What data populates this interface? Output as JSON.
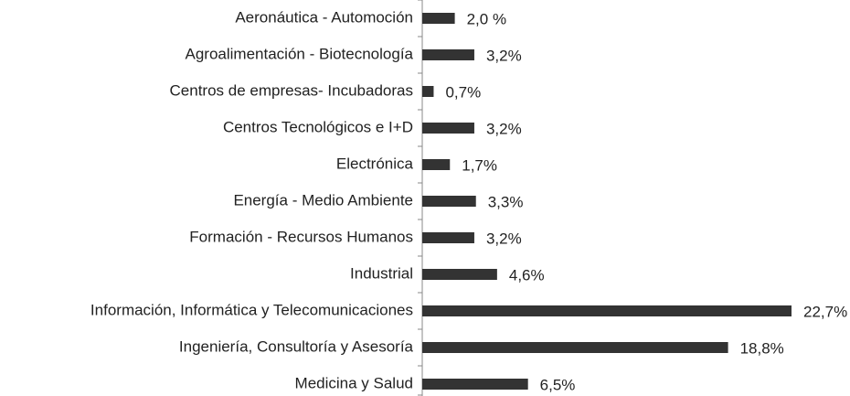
{
  "chart_data": {
    "type": "barh",
    "categories": [
      "Aeronáutica - Automoción",
      "Agroalimentación - Biotecnología",
      "Centros de empresas- Incubadoras",
      "Centros Tecnológicos e I+D",
      "Electrónica",
      "Energía - Medio Ambiente",
      "Formación - Recursos Humanos",
      "Industrial",
      "Información, Informática y Telecomunicaciones",
      "Ingeniería, Consultoría y Asesoría",
      "Medicina y Salud"
    ],
    "values": [
      2.0,
      3.2,
      0.7,
      3.2,
      1.7,
      3.3,
      3.2,
      4.6,
      22.7,
      18.8,
      6.5
    ],
    "value_labels": [
      "2,0 %",
      "3,2%",
      "0,7%",
      "3,2%",
      "1,7%",
      "3,3%",
      "3,2%",
      "4,6%",
      "22,7%",
      "18,8%",
      "6,5%"
    ],
    "color": "#333333"
  }
}
